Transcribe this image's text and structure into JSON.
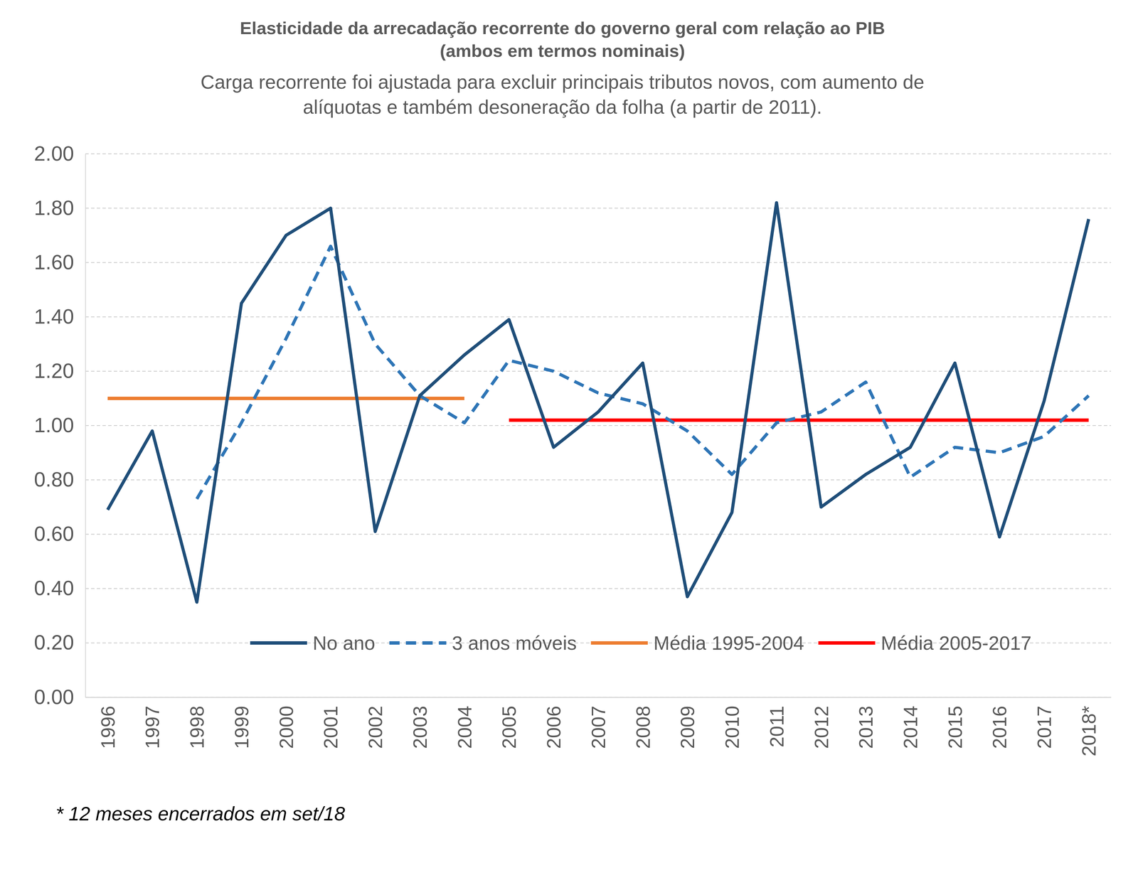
{
  "chart_data": {
    "type": "line",
    "title": [
      "Elasticidade da arrecadação recorrente do governo geral com relação ao PIB",
      "(ambos em termos nominais)"
    ],
    "subtitle": [
      "Carga recorrente foi ajustada para excluir principais tributos novos, com aumento de",
      "alíquotas e também desoneração da folha (a partir de 2011)."
    ],
    "footnote": "* 12 meses encerrados em set/18",
    "categories": [
      "1996",
      "1997",
      "1998",
      "1999",
      "2000",
      "2001",
      "2002",
      "2003",
      "2004",
      "2005",
      "2006",
      "2007",
      "2008",
      "2009",
      "2010",
      "2011",
      "2012",
      "2013",
      "2014",
      "2015",
      "2016",
      "2017",
      "2018*"
    ],
    "series": [
      {
        "name": "No ano",
        "color": "#1f4e79",
        "line_style": "solid",
        "values": [
          0.69,
          0.98,
          0.35,
          1.45,
          1.7,
          1.8,
          0.61,
          1.11,
          1.26,
          1.39,
          0.92,
          1.05,
          1.23,
          0.37,
          0.68,
          1.82,
          0.7,
          0.82,
          0.92,
          1.23,
          0.59,
          1.09,
          1.76
        ]
      },
      {
        "name": "3 anos móveis",
        "color": "#2e75b6",
        "line_style": "dashed",
        "values": [
          null,
          null,
          0.73,
          1.01,
          1.32,
          1.66,
          1.3,
          1.11,
          1.01,
          1.24,
          1.2,
          1.12,
          1.08,
          0.98,
          0.82,
          1.01,
          1.05,
          1.16,
          0.81,
          0.92,
          0.9,
          0.96,
          1.11
        ]
      },
      {
        "name": "Média 1995-2004",
        "color": "#ed7d31",
        "line_style": "solid",
        "values": [
          1.1,
          1.1,
          1.1,
          1.1,
          1.1,
          1.1,
          1.1,
          1.1,
          1.1,
          null,
          null,
          null,
          null,
          null,
          null,
          null,
          null,
          null,
          null,
          null,
          null,
          null,
          null
        ]
      },
      {
        "name": "Média 2005-2017",
        "color": "#ff0000",
        "line_style": "solid",
        "values": [
          null,
          null,
          null,
          null,
          null,
          null,
          null,
          null,
          null,
          1.02,
          1.02,
          1.02,
          1.02,
          1.02,
          1.02,
          1.02,
          1.02,
          1.02,
          1.02,
          1.02,
          1.02,
          1.02,
          1.02
        ]
      }
    ],
    "ylim": [
      0,
      2
    ],
    "yticks": [
      {
        "value": 0,
        "label": "0.00"
      },
      {
        "value": 0.2,
        "label": "0.20"
      },
      {
        "value": 0.4,
        "label": "0.40"
      },
      {
        "value": 0.6,
        "label": "0.60"
      },
      {
        "value": 0.8,
        "label": "0.80"
      },
      {
        "value": 1,
        "label": "1.00"
      },
      {
        "value": 1.2,
        "label": "1.20"
      },
      {
        "value": 1.4,
        "label": "1.40"
      },
      {
        "value": 1.6,
        "label": "1.60"
      },
      {
        "value": 1.8,
        "label": "1.80"
      },
      {
        "value": 2,
        "label": "2.00"
      }
    ],
    "grid": true,
    "legend": "bottom"
  }
}
